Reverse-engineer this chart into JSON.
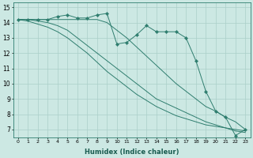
{
  "xlabel": "Humidex (Indice chaleur)",
  "x_values": [
    0,
    1,
    2,
    3,
    4,
    5,
    6,
    7,
    8,
    9,
    10,
    11,
    12,
    13,
    14,
    15,
    16,
    17,
    18,
    19,
    20,
    21,
    22,
    23
  ],
  "series1": [
    14.2,
    14.2,
    14.2,
    14.2,
    14.4,
    14.5,
    14.3,
    14.3,
    14.5,
    14.6,
    12.6,
    12.7,
    13.2,
    13.8,
    13.4,
    13.4,
    13.4,
    13.0,
    11.5,
    9.5,
    8.2,
    7.8,
    6.6,
    7.0
  ],
  "series2": [
    14.2,
    14.2,
    14.2,
    14.2,
    14.2,
    14.2,
    14.2,
    14.2,
    14.2,
    14.0,
    13.5,
    13.0,
    12.4,
    11.8,
    11.2,
    10.6,
    10.0,
    9.5,
    9.0,
    8.5,
    8.2,
    7.8,
    7.5,
    7.0
  ],
  "series3": [
    14.2,
    14.2,
    14.1,
    14.0,
    13.8,
    13.5,
    13.0,
    12.5,
    12.0,
    11.5,
    11.0,
    10.5,
    10.0,
    9.5,
    9.0,
    8.7,
    8.4,
    8.1,
    7.8,
    7.5,
    7.3,
    7.1,
    6.9,
    6.8
  ],
  "series4": [
    14.2,
    14.1,
    13.9,
    13.7,
    13.4,
    13.0,
    12.5,
    12.0,
    11.4,
    10.8,
    10.3,
    9.8,
    9.3,
    8.9,
    8.5,
    8.2,
    7.9,
    7.7,
    7.5,
    7.3,
    7.2,
    7.1,
    7.0,
    6.9
  ],
  "color": "#2e7d6e",
  "bg_color": "#cce8e3",
  "grid_color": "#aacfc9",
  "ylim": [
    6.5,
    15.3
  ],
  "xlim": [
    -0.5,
    23.5
  ]
}
